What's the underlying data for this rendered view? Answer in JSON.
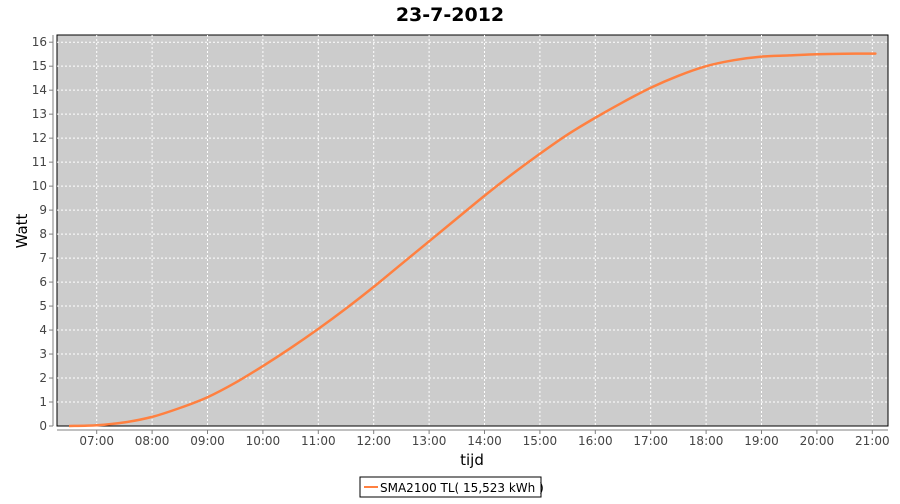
{
  "chart_data": {
    "type": "line",
    "title": "23-7-2012",
    "xlabel": "tijd",
    "ylabel": "Watt",
    "xlim": [
      "06:17",
      "21:17"
    ],
    "ylim": [
      0,
      16.3
    ],
    "grid": true,
    "legend_placement": "bottom",
    "x_ticks": [
      "07:00",
      "08:00",
      "09:00",
      "10:00",
      "11:00",
      "12:00",
      "13:00",
      "14:00",
      "15:00",
      "16:00",
      "17:00",
      "18:00",
      "19:00",
      "20:00",
      "21:00"
    ],
    "y_ticks": [
      0,
      1,
      2,
      3,
      4,
      5,
      6,
      7,
      8,
      9,
      10,
      11,
      12,
      13,
      14,
      15,
      16
    ],
    "colors": {
      "plot_bg": "#cccccc",
      "series": "#ff8040",
      "grid": "#ffffff"
    },
    "series": [
      {
        "name": "SMA2100 TL( 15,523 kWh )",
        "x": [
          "06:30",
          "07:00",
          "07:30",
          "08:00",
          "08:30",
          "09:00",
          "09:30",
          "10:00",
          "10:30",
          "11:00",
          "11:30",
          "12:00",
          "12:30",
          "13:00",
          "13:30",
          "14:00",
          "14:30",
          "15:00",
          "15:30",
          "16:00",
          "16:30",
          "17:00",
          "17:30",
          "18:00",
          "18:30",
          "19:00",
          "19:30",
          "20:00",
          "20:30",
          "21:00",
          "21:03"
        ],
        "values": [
          0,
          0.03,
          0.15,
          0.38,
          0.75,
          1.2,
          1.8,
          2.5,
          3.25,
          4.05,
          4.9,
          5.8,
          6.75,
          7.7,
          8.65,
          9.6,
          10.5,
          11.35,
          12.15,
          12.85,
          13.5,
          14.1,
          14.6,
          15.0,
          15.25,
          15.4,
          15.45,
          15.5,
          15.52,
          15.523,
          15.523
        ]
      }
    ]
  }
}
